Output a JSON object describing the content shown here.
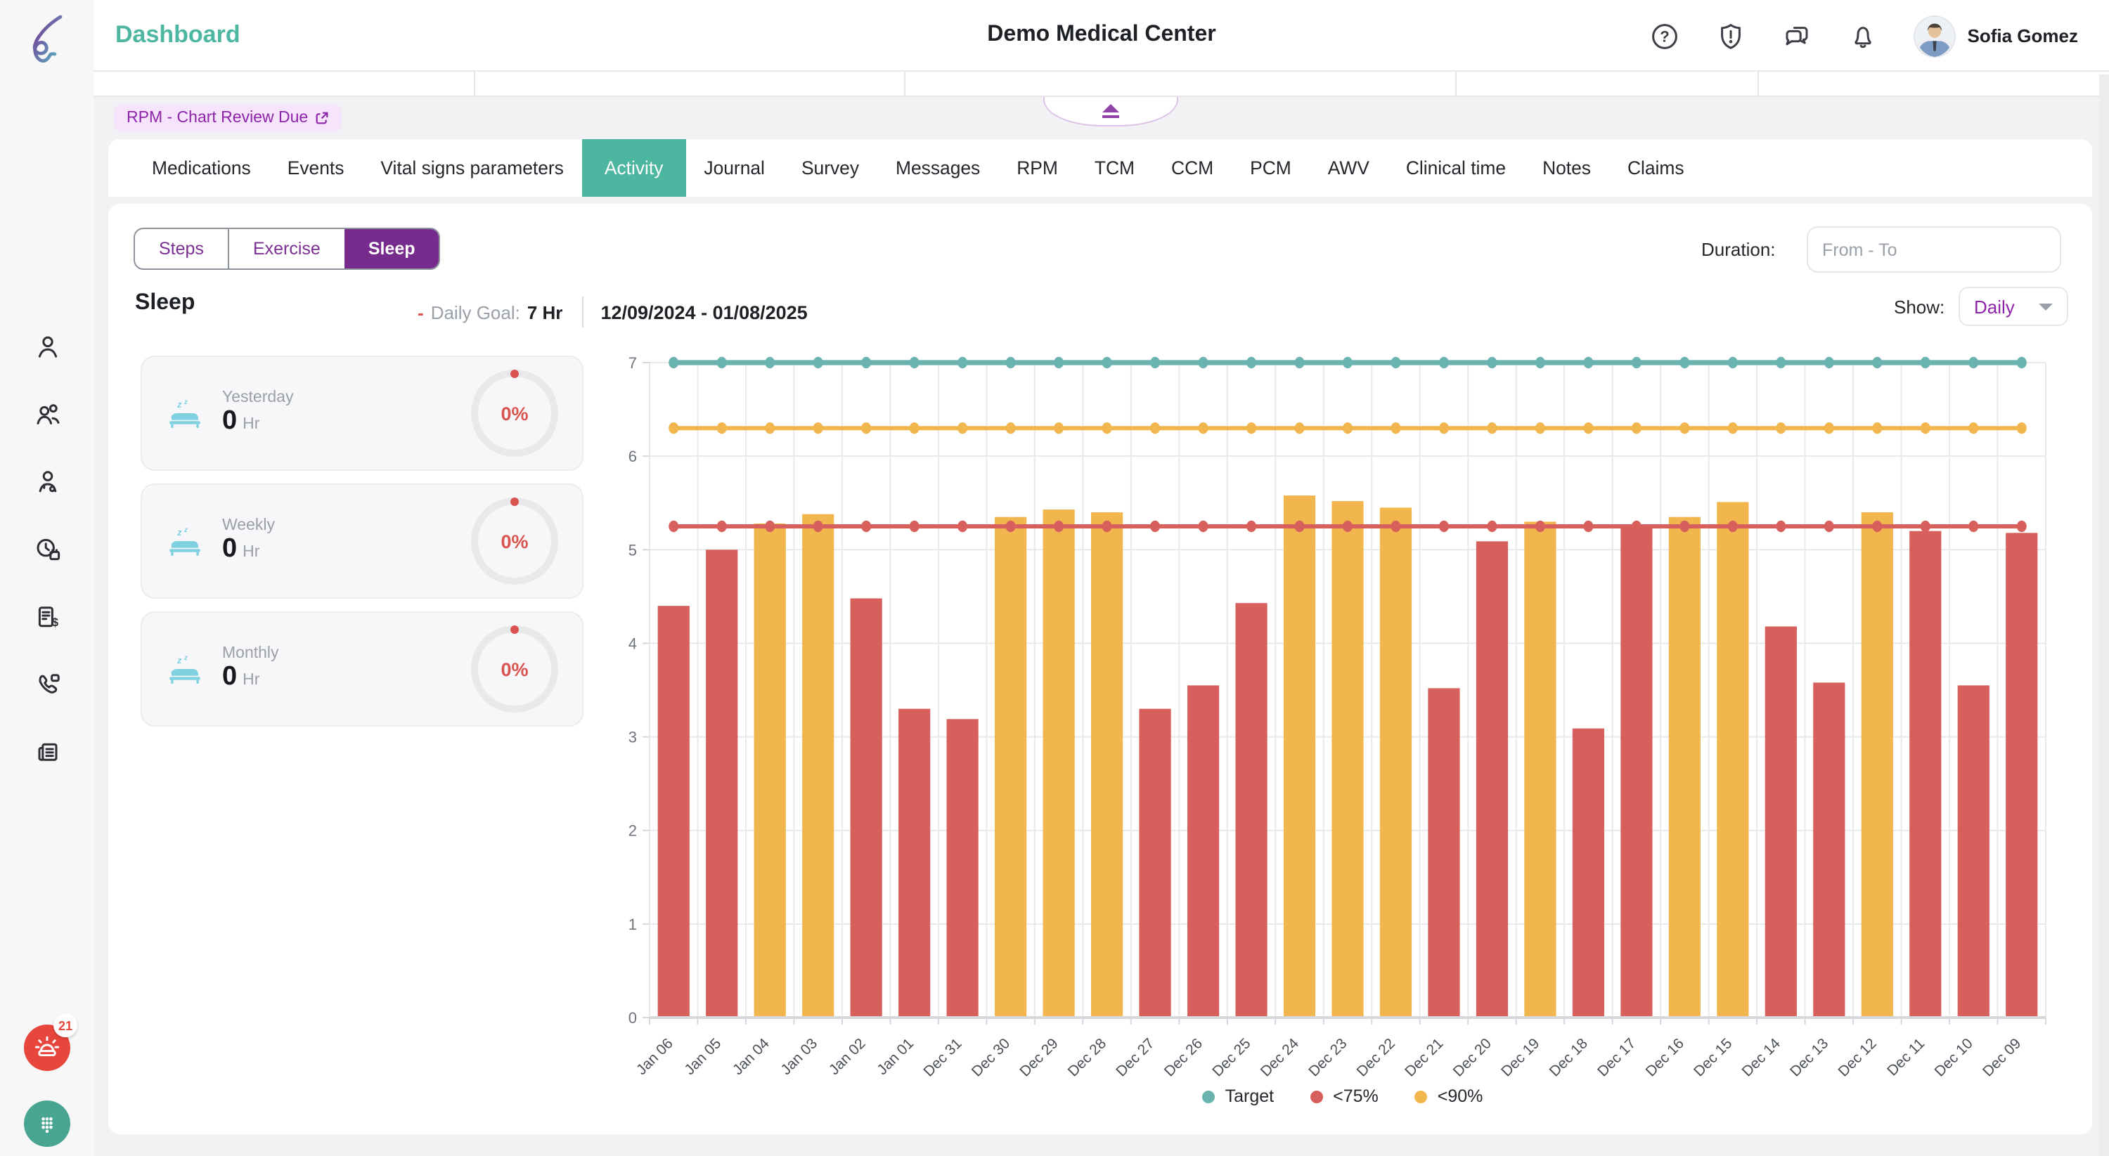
{
  "header": {
    "page_title": "Dashboard",
    "facility_name": "Demo Medical Center",
    "user_name": "Sofia Gomez"
  },
  "alert_badge": {
    "label": "RPM - Chart Review Due"
  },
  "nav_tabs": {
    "items": [
      "Medications",
      "Events",
      "Vital signs parameters",
      "Activity",
      "Journal",
      "Survey",
      "Messages",
      "RPM",
      "TCM",
      "CCM",
      "PCM",
      "AWV",
      "Clinical time",
      "Notes",
      "Claims"
    ],
    "active": "Activity"
  },
  "activity_subtabs": {
    "items": [
      "Steps",
      "Exercise",
      "Sleep"
    ],
    "active": "Sleep"
  },
  "duration_filter": {
    "label": "Duration:",
    "placeholder": "From - To"
  },
  "sleep_section": {
    "title": "Sleep",
    "goal_label": "Daily Goal:",
    "goal_value": "7 Hr",
    "date_range": "12/09/2024 - 01/08/2025",
    "show_label": "Show:",
    "show_value": "Daily"
  },
  "summary_cards": [
    {
      "label": "Yesterday",
      "value": "0",
      "unit": "Hr",
      "percent": "0%"
    },
    {
      "label": "Weekly",
      "value": "0",
      "unit": "Hr",
      "percent": "0%"
    },
    {
      "label": "Monthly",
      "value": "0",
      "unit": "Hr",
      "percent": "0%"
    }
  ],
  "sidebar": {
    "nav_icons": [
      "patient-icon",
      "care-team-icon",
      "doctor-icon",
      "schedule-icon",
      "billing-icon",
      "phone-call-icon",
      "fax-icon"
    ],
    "notification_count": "21"
  },
  "chart_data": {
    "type": "bar",
    "categories": [
      "Jan 06",
      "Jan 05",
      "Jan 04",
      "Jan 03",
      "Jan 02",
      "Jan 01",
      "Dec 31",
      "Dec 30",
      "Dec 29",
      "Dec 28",
      "Dec 27",
      "Dec 26",
      "Dec 25",
      "Dec 24",
      "Dec 23",
      "Dec 22",
      "Dec 21",
      "Dec 20",
      "Dec 19",
      "Dec 18",
      "Dec 17",
      "Dec 16",
      "Dec 15",
      "Dec 14",
      "Dec 13",
      "Dec 12",
      "Dec 11",
      "Dec 10",
      "Dec 09"
    ],
    "values": [
      4.4,
      5.0,
      5.28,
      5.38,
      4.48,
      3.3,
      3.19,
      5.35,
      5.43,
      5.4,
      3.3,
      3.55,
      4.43,
      5.58,
      5.52,
      5.45,
      3.52,
      5.09,
      5.3,
      3.09,
      5.25,
      5.35,
      5.51,
      4.18,
      3.58,
      5.4,
      5.2,
      3.55,
      5.18
    ],
    "statuses": [
      "red",
      "red",
      "yellow",
      "yellow",
      "red",
      "red",
      "red",
      "yellow",
      "yellow",
      "yellow",
      "red",
      "red",
      "red",
      "yellow",
      "yellow",
      "yellow",
      "red",
      "red",
      "yellow",
      "red",
      "red",
      "yellow",
      "yellow",
      "red",
      "red",
      "yellow",
      "red",
      "red",
      "red"
    ],
    "lines": [
      {
        "name": "Target",
        "value": 7,
        "color": "#6bb3ae"
      },
      {
        "name": "<90%",
        "value": 6.3,
        "color": "#f2b64f"
      },
      {
        "name": "<75%",
        "value": 5.25,
        "color": "#d8605c"
      }
    ],
    "ylim": [
      0,
      7
    ],
    "yticks": [
      0,
      1,
      2,
      3,
      4,
      5,
      6,
      7
    ],
    "bar_colors": {
      "red": "#d8605c",
      "yellow": "#f2b64f"
    },
    "legend": [
      {
        "label": "Target",
        "color": "#6bb3ae"
      },
      {
        "label": "<75%",
        "color": "#d8605c"
      },
      {
        "label": "<90%",
        "color": "#f2b64f"
      }
    ],
    "legend_position": "bottom",
    "grid": true
  },
  "colors": {
    "accent_teal": "#4db6a0",
    "accent_purple": "#762b8d",
    "badge_bg": "#f6e3fc",
    "badge_text": "#8e24aa",
    "status_red": "#d9534f",
    "alert_red": "#e8453c",
    "dialpad_teal": "#4aa492",
    "bed_icon_blue": "#7fd0e0",
    "chart_grid": "#e7e9ed",
    "chart_axis": "#d5d8dd"
  }
}
